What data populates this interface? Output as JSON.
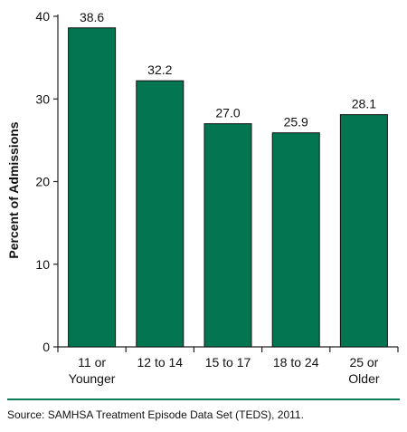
{
  "chart_data": {
    "type": "bar",
    "categories": [
      "11 or\nYounger",
      "12 to 14",
      "15 to 17",
      "18 to 24",
      "25 or\nOlder"
    ],
    "values": [
      38.6,
      32.2,
      27.0,
      25.9,
      28.1
    ],
    "value_labels": [
      "38.6",
      "32.2",
      "27.0",
      "25.9",
      "28.1"
    ],
    "title": "",
    "xlabel": "",
    "ylabel": "Percent of Admissions",
    "ylim": [
      0,
      40
    ],
    "yticks": [
      0,
      10,
      20,
      30,
      40
    ],
    "grid": false,
    "legend": "none",
    "bar_color": "#037651"
  },
  "footer": {
    "source": "Source: SAMHSA Treatment Episode Data Set (TEDS), 2011.",
    "rule_color": "#0b7a56"
  }
}
